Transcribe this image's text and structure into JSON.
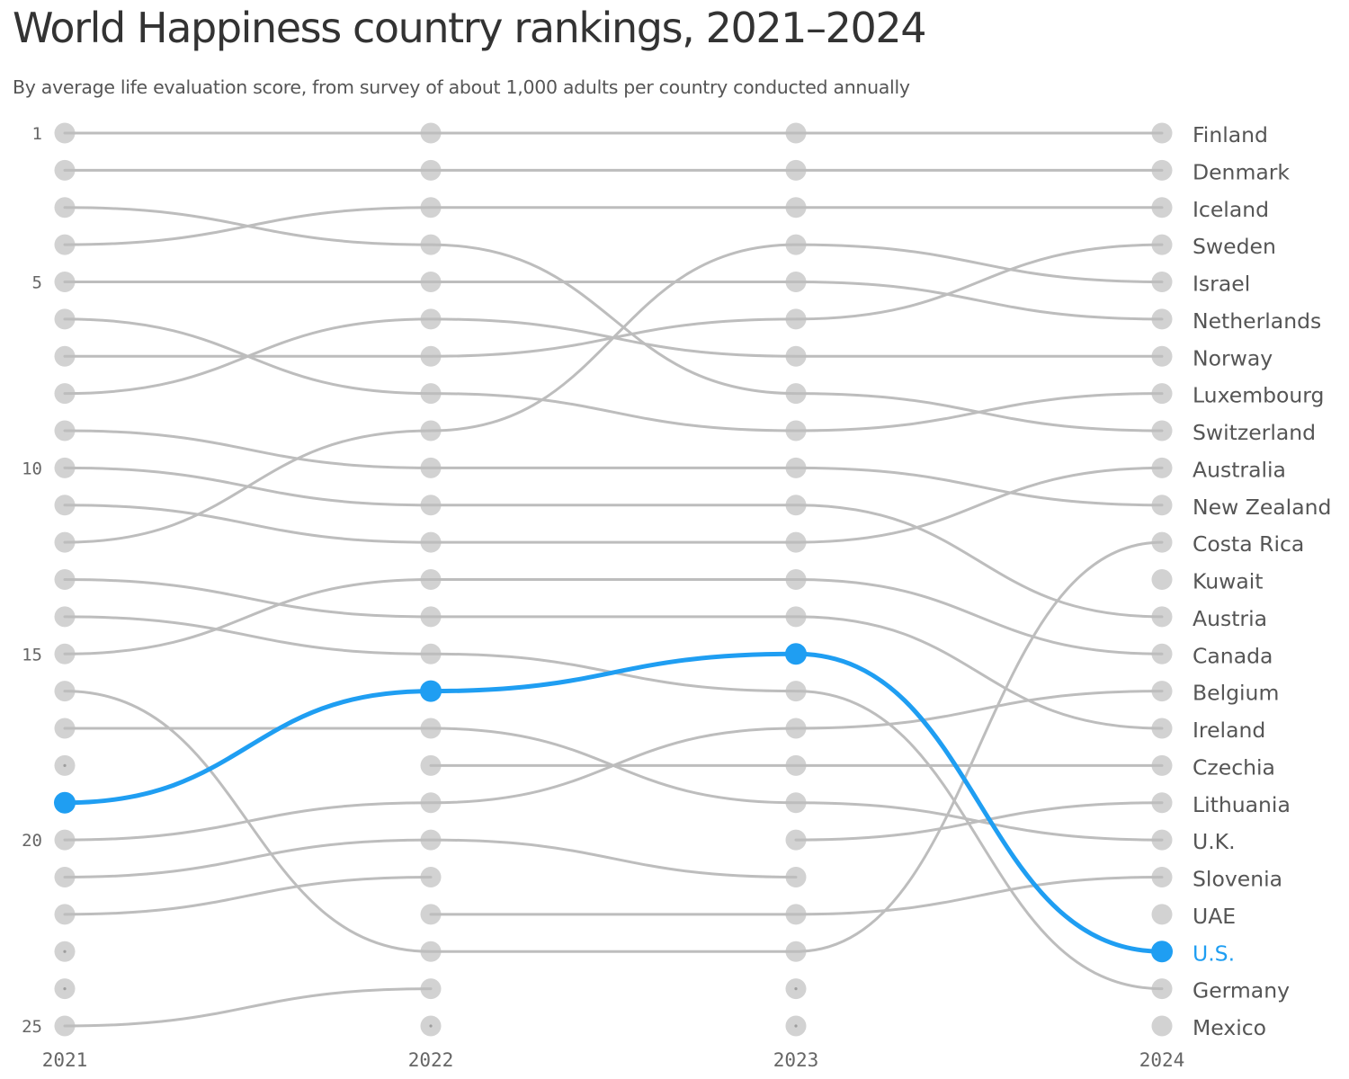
{
  "chart_data": {
    "type": "line",
    "title": "World Happiness country rankings, 2021–2024",
    "subtitle": "By average life evaluation score, from survey of about 1,000 adults per country conducted annually",
    "x": [
      "2021",
      "2022",
      "2023",
      "2024"
    ],
    "y_tick_labels": [
      "1",
      "5",
      "10",
      "15",
      "20",
      "25"
    ],
    "y_ticks": [
      1,
      5,
      10,
      15,
      20,
      25
    ],
    "ylim": [
      1,
      25
    ],
    "y_inverted": true,
    "grid": false,
    "legend": "direct labels at right",
    "colors": {
      "default": "#bdbdbd",
      "highlight": "#1f9ef2"
    },
    "highlight_series": "U.S.",
    "series": [
      {
        "name": "Finland",
        "ranks": [
          1,
          1,
          1,
          1
        ]
      },
      {
        "name": "Denmark",
        "ranks": [
          2,
          2,
          2,
          2
        ]
      },
      {
        "name": "Iceland",
        "ranks": [
          4,
          3,
          3,
          3
        ]
      },
      {
        "name": "Sweden",
        "ranks": [
          7,
          7,
          6,
          4
        ]
      },
      {
        "name": "Israel",
        "ranks": [
          12,
          9,
          4,
          5
        ]
      },
      {
        "name": "Netherlands",
        "ranks": [
          5,
          5,
          5,
          6
        ]
      },
      {
        "name": "Norway",
        "ranks": [
          8,
          6,
          7,
          7
        ]
      },
      {
        "name": "Luxembourg",
        "ranks": [
          6,
          8,
          9,
          8
        ]
      },
      {
        "name": "Switzerland",
        "ranks": [
          3,
          4,
          8,
          9
        ]
      },
      {
        "name": "Australia",
        "ranks": [
          11,
          12,
          12,
          10
        ]
      },
      {
        "name": "New Zealand",
        "ranks": [
          9,
          10,
          10,
          11
        ]
      },
      {
        "name": "Costa Rica",
        "ranks": [
          16,
          23,
          23,
          12
        ]
      },
      {
        "name": "Kuwait",
        "ranks": [
          null,
          null,
          null,
          13
        ]
      },
      {
        "name": "Austria",
        "ranks": [
          10,
          11,
          11,
          14
        ]
      },
      {
        "name": "Canada",
        "ranks": [
          15,
          13,
          13,
          15
        ]
      },
      {
        "name": "Belgium",
        "ranks": [
          20,
          19,
          17,
          16
        ]
      },
      {
        "name": "Ireland",
        "ranks": [
          13,
          14,
          14,
          17
        ]
      },
      {
        "name": "Czechia",
        "ranks": [
          null,
          18,
          18,
          18
        ]
      },
      {
        "name": "Lithuania",
        "ranks": [
          null,
          null,
          20,
          19
        ]
      },
      {
        "name": "U.K.",
        "ranks": [
          17,
          17,
          19,
          20
        ]
      },
      {
        "name": "Slovenia",
        "ranks": [
          null,
          22,
          22,
          21
        ]
      },
      {
        "name": "UAE",
        "ranks": [
          null,
          null,
          null,
          22
        ]
      },
      {
        "name": "U.S.",
        "ranks": [
          19,
          16,
          15,
          23
        ]
      },
      {
        "name": "Germany",
        "ranks": [
          14,
          15,
          16,
          24
        ]
      },
      {
        "name": "Mexico",
        "ranks": [
          null,
          null,
          null,
          25
        ]
      },
      {
        "name": "",
        "ranks": [
          21,
          20,
          21,
          null
        ]
      },
      {
        "name": "",
        "ranks": [
          22,
          21,
          null,
          null
        ]
      },
      {
        "name": "",
        "ranks": [
          25,
          24,
          null,
          null
        ]
      }
    ],
    "empty_slots": [
      [
        2021,
        18
      ],
      [
        2021,
        23
      ],
      [
        2021,
        24
      ],
      [
        2022,
        25
      ],
      [
        2023,
        24
      ],
      [
        2023,
        25
      ]
    ]
  }
}
